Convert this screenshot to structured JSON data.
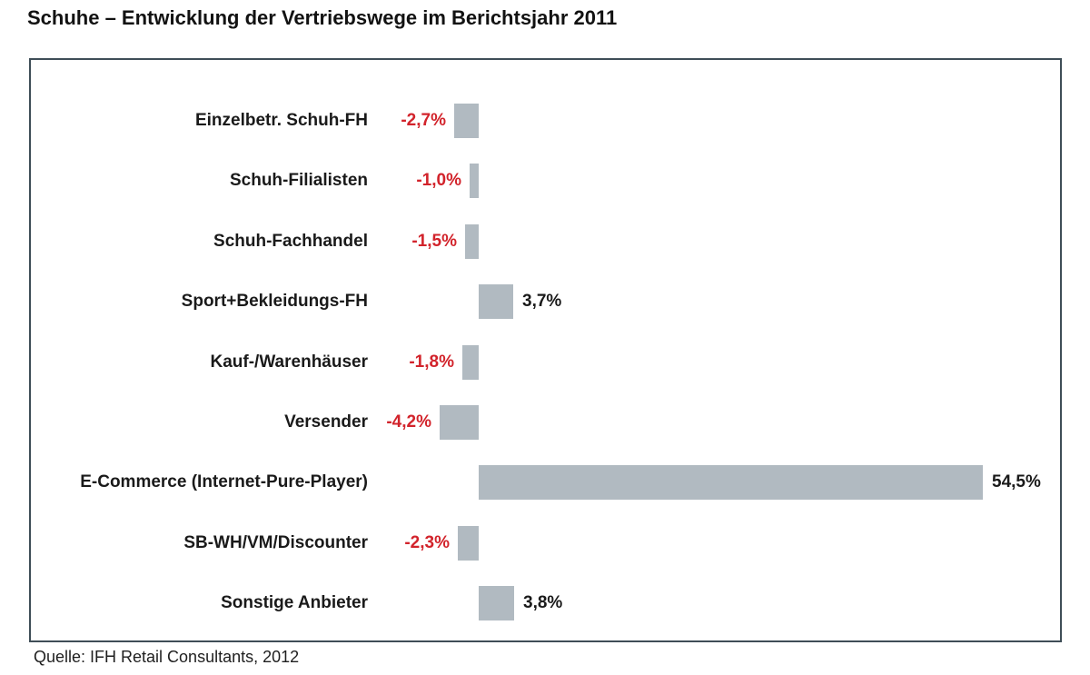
{
  "title": "Schuhe – Entwicklung der Vertriebswege im Berichtsjahr 2011",
  "source": "Quelle: IFH Retail Consultants, 2012",
  "colors": {
    "bar": "#b1bac1",
    "negative_label": "#d2232b",
    "positive_label": "#1a1a1a",
    "box_border": "#3f4e57"
  },
  "chart_data": {
    "type": "bar",
    "orientation": "horizontal",
    "title": "Schuhe – Entwicklung der Vertriebswege im Berichtsjahr 2011",
    "xlabel": "",
    "ylabel": "",
    "xlim": [
      -10,
      63
    ],
    "grid": false,
    "axes_visible": false,
    "categories": [
      "Einzelbetr. Schuh-FH",
      "Schuh-Filialisten",
      "Schuh-Fachhandel",
      "Sport+Bekleidungs-FH",
      "Kauf-/Warenhäuser",
      "Versender",
      "E-Commerce (Internet-Pure-Player)",
      "SB-WH/VM/Discounter",
      "Sonstige Anbieter"
    ],
    "values": [
      -2.7,
      -1.0,
      -1.5,
      3.7,
      -1.8,
      -4.2,
      54.5,
      -2.3,
      3.8
    ],
    "value_labels": [
      "-2,7%",
      "-1,0%",
      "-1,5%",
      "3,7%",
      "-1,8%",
      "-4,2%",
      "54,5%",
      "-2,3%",
      "3,8%"
    ]
  }
}
